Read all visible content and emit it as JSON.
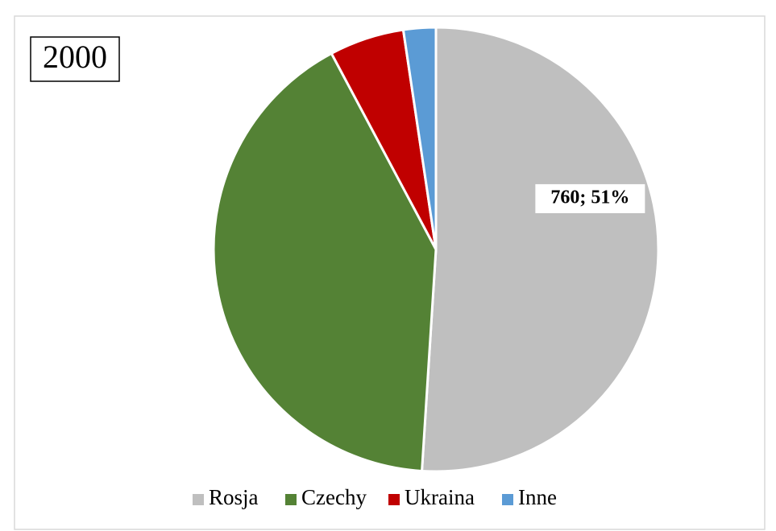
{
  "chart_data": {
    "type": "pie",
    "title": "2000",
    "categories": [
      "Rosja",
      "Czechy",
      "Ukraina",
      "Inne"
    ],
    "values": [
      760,
      614,
      81,
      35
    ],
    "value_labels": [
      "760; 51%",
      null,
      null,
      null
    ],
    "colors": [
      "#bfbfbf",
      "#548235",
      "#c00000",
      "#5b9bd5"
    ],
    "legend": "bottom"
  }
}
